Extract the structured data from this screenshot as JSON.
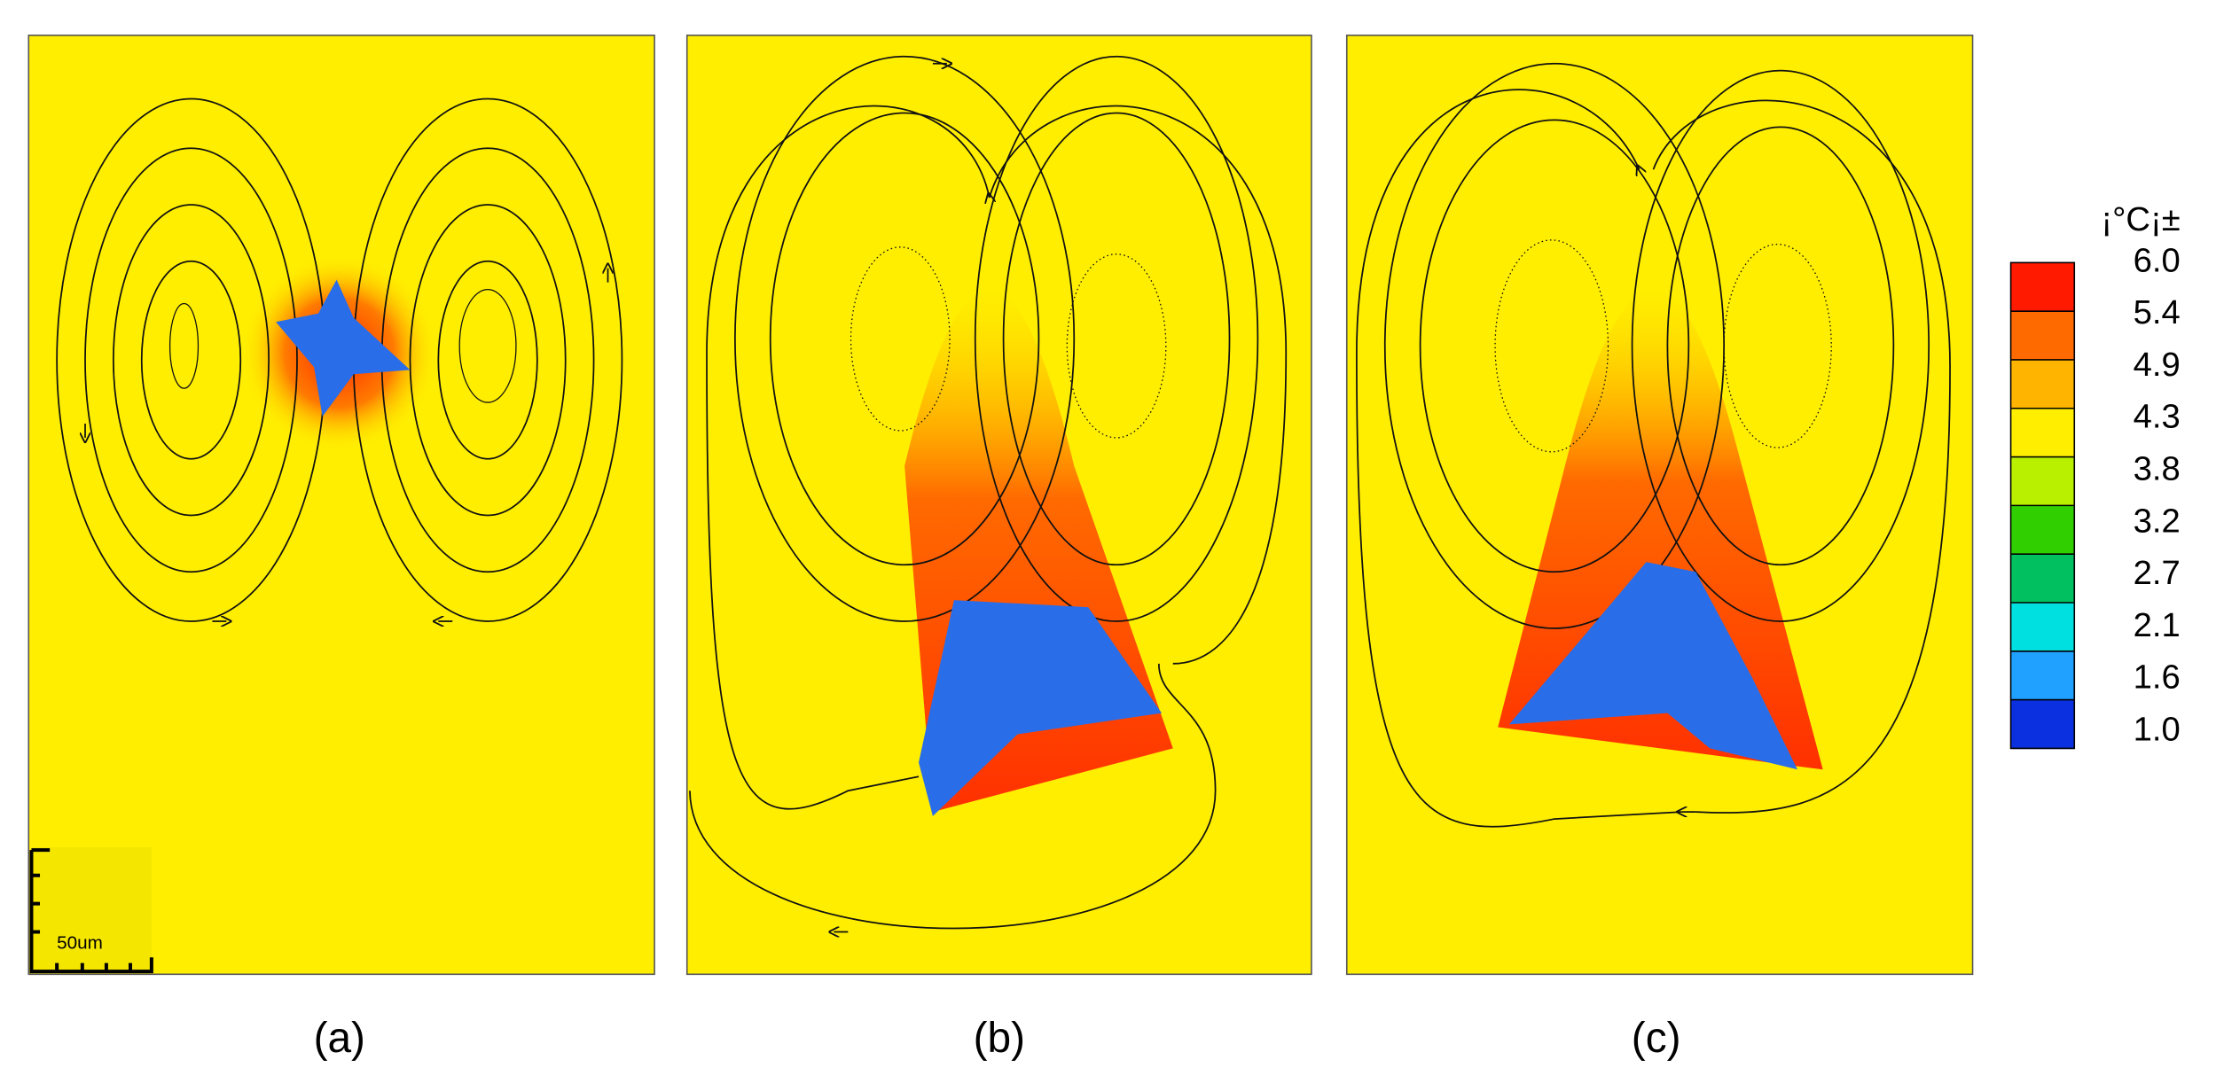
{
  "panels": [
    {
      "label": "(a)"
    },
    {
      "label": "(b)"
    },
    {
      "label": "(c)"
    }
  ],
  "scale_bar": {
    "label": "50um"
  },
  "colorbar": {
    "title": "¡°C¡±",
    "labels": [
      "6.0",
      "5.4",
      "4.9",
      "4.3",
      "3.8",
      "3.2",
      "2.7",
      "2.1",
      "1.6",
      "1.0"
    ]
  }
}
